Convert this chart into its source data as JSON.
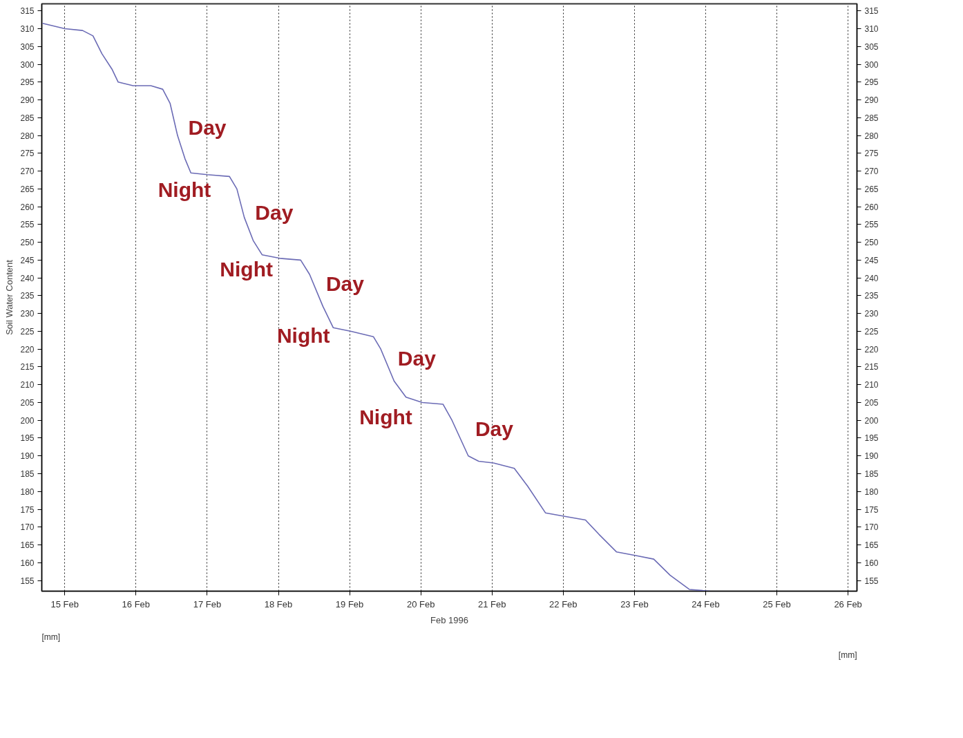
{
  "chart_data": {
    "type": "line",
    "xlabel": "Feb 1996",
    "ylabel": "Soil Water Content",
    "x": [
      "1996-02-14T16:30",
      "1996-02-15T00:00",
      "1996-02-15T06:00",
      "1996-02-15T09:30",
      "1996-02-15T12:30",
      "1996-02-15T16:00",
      "1996-02-15T18:00",
      "1996-02-15T23:00",
      "1996-02-16T05:00",
      "1996-02-16T09:00",
      "1996-02-16T11:30",
      "1996-02-16T14:00",
      "1996-02-16T16:30",
      "1996-02-16T18:30",
      "1996-02-17T00:00",
      "1996-02-17T07:30",
      "1996-02-17T10:00",
      "1996-02-17T12:30",
      "1996-02-17T15:30",
      "1996-02-17T18:30",
      "1996-02-18T00:30",
      "1996-02-18T07:30",
      "1996-02-18T10:30",
      "1996-02-18T15:00",
      "1996-02-18T18:30",
      "1996-02-19T00:30",
      "1996-02-19T08:00",
      "1996-02-19T10:30",
      "1996-02-19T15:00",
      "1996-02-19T19:00",
      "1996-02-20T00:30",
      "1996-02-20T07:30",
      "1996-02-20T10:30",
      "1996-02-20T16:00",
      "1996-02-20T19:30",
      "1996-02-21T00:30",
      "1996-02-21T07:30",
      "1996-02-21T12:00",
      "1996-02-21T18:00",
      "1996-02-22T00:30",
      "1996-02-22T07:30",
      "1996-02-22T12:00",
      "1996-02-22T18:00",
      "1996-02-23T00:30",
      "1996-02-23T06:30",
      "1996-02-23T12:00",
      "1996-02-23T18:30",
      "1996-02-24T01:30"
    ],
    "series": [
      {
        "color": "#6b6bb5",
        "values": [
          311.5,
          310,
          309.5,
          308,
          303,
          298.5,
          295,
          294,
          294,
          293,
          289,
          280,
          273.5,
          269.5,
          269,
          268.5,
          265,
          257,
          250.5,
          246.5,
          245.5,
          245,
          241,
          232,
          226,
          225,
          223.5,
          220,
          211,
          206.5,
          205,
          204.5,
          200,
          190,
          188.5,
          188,
          186.5,
          181.5,
          174,
          173,
          172,
          168,
          163,
          162,
          161,
          156.5,
          152.5,
          152
        ]
      }
    ],
    "xlim": [
      "1996-02-14T16:15",
      "1996-02-26T03:00"
    ],
    "xticks": [
      {
        "value": "1996-02-15",
        "label": "15 Feb"
      },
      {
        "value": "1996-02-16",
        "label": "16 Feb"
      },
      {
        "value": "1996-02-17",
        "label": "17 Feb"
      },
      {
        "value": "1996-02-18",
        "label": "18 Feb"
      },
      {
        "value": "1996-02-19",
        "label": "19 Feb"
      },
      {
        "value": "1996-02-20",
        "label": "20 Feb"
      },
      {
        "value": "1996-02-21",
        "label": "21 Feb"
      },
      {
        "value": "1996-02-22",
        "label": "22 Feb"
      },
      {
        "value": "1996-02-23",
        "label": "23 Feb"
      },
      {
        "value": "1996-02-24",
        "label": "24 Feb"
      },
      {
        "value": "1996-02-25",
        "label": "25 Feb"
      },
      {
        "value": "1996-02-26",
        "label": "26 Feb"
      }
    ],
    "ylim": [
      152,
      317
    ],
    "yticks": [
      155,
      160,
      165,
      170,
      175,
      180,
      185,
      190,
      195,
      200,
      205,
      210,
      215,
      220,
      225,
      230,
      235,
      240,
      245,
      250,
      255,
      260,
      265,
      270,
      275,
      280,
      285,
      290,
      295,
      300,
      305,
      310,
      315
    ],
    "y2lim": [
      152,
      317
    ],
    "y2ticks": [
      155,
      160,
      165,
      170,
      175,
      180,
      185,
      190,
      195,
      200,
      205,
      210,
      215,
      220,
      225,
      230,
      235,
      240,
      245,
      250,
      255,
      260,
      265,
      270,
      275,
      280,
      285,
      290,
      295,
      300,
      305,
      310,
      315
    ],
    "grid": "x",
    "line_style": "solid",
    "annotations": [
      "Day",
      "Night",
      "Day",
      "Night",
      "Day",
      "Night",
      "Day",
      "Night",
      "Day",
      "[mm]",
      "[mm]"
    ]
  }
}
